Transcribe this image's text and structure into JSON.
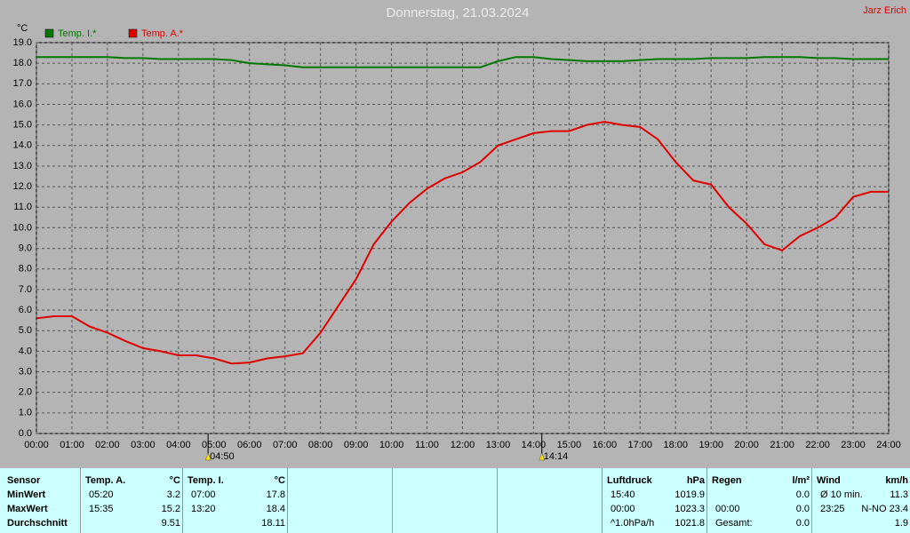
{
  "chart_data": {
    "type": "line",
    "title": "Donnerstag, 21.03.2024",
    "author": "Jarz Erich",
    "y_unit": "°C",
    "x": [
      0,
      0.5,
      1,
      1.5,
      2,
      2.5,
      3,
      3.5,
      4,
      4.5,
      5,
      5.5,
      6,
      6.5,
      7,
      7.5,
      8,
      8.5,
      9,
      9.5,
      10,
      10.5,
      11,
      11.5,
      12,
      12.5,
      13,
      13.5,
      14,
      14.5,
      15,
      15.5,
      16,
      16.5,
      17,
      17.5,
      18,
      18.5,
      19,
      19.5,
      20,
      20.5,
      21,
      21.5,
      22,
      22.5,
      23,
      23.5,
      24
    ],
    "series": [
      {
        "name": "Temp. I.*",
        "color": "#007800",
        "values": [
          18.3,
          18.3,
          18.3,
          18.3,
          18.3,
          18.25,
          18.25,
          18.2,
          18.2,
          18.2,
          18.2,
          18.15,
          18.0,
          17.95,
          17.9,
          17.8,
          17.8,
          17.8,
          17.8,
          17.8,
          17.8,
          17.8,
          17.8,
          17.8,
          17.8,
          17.8,
          18.1,
          18.3,
          18.3,
          18.2,
          18.15,
          18.1,
          18.1,
          18.1,
          18.15,
          18.2,
          18.2,
          18.2,
          18.25,
          18.25,
          18.25,
          18.3,
          18.3,
          18.3,
          18.25,
          18.25,
          18.2,
          18.2,
          18.2
        ]
      },
      {
        "name": "Temp. A.*",
        "color": "#e00000",
        "values": [
          5.6,
          5.7,
          5.7,
          5.2,
          4.9,
          4.5,
          4.15,
          4.0,
          3.8,
          3.8,
          3.65,
          3.4,
          3.45,
          3.65,
          3.75,
          3.9,
          4.9,
          6.2,
          7.5,
          9.2,
          10.3,
          11.2,
          11.9,
          12.4,
          12.7,
          13.2,
          14.0,
          14.3,
          14.6,
          14.7,
          14.7,
          15.0,
          15.15,
          15.0,
          14.9,
          14.3,
          13.2,
          12.3,
          12.1,
          11.0,
          10.2,
          9.2,
          8.9,
          9.6,
          10.0,
          10.5,
          11.5,
          11.75,
          11.75
        ]
      }
    ],
    "xlim": [
      0,
      24
    ],
    "ylim": [
      0,
      19
    ],
    "grid": true,
    "xticks": [
      {
        "value": 0,
        "label": "00:00"
      },
      {
        "value": 1,
        "label": "01:00"
      },
      {
        "value": 2,
        "label": "02:00"
      },
      {
        "value": 3,
        "label": "03:00"
      },
      {
        "value": 4,
        "label": "04:00"
      },
      {
        "value": 5,
        "label": "05:00"
      },
      {
        "value": 6,
        "label": "06:00"
      },
      {
        "value": 7,
        "label": "07:00"
      },
      {
        "value": 8,
        "label": "08:00"
      },
      {
        "value": 9,
        "label": "09:00"
      },
      {
        "value": 10,
        "label": "10:00"
      },
      {
        "value": 11,
        "label": "11:00"
      },
      {
        "value": 12,
        "label": "12:00"
      },
      {
        "value": 13,
        "label": "13:00"
      },
      {
        "value": 14,
        "label": "14:00"
      },
      {
        "value": 15,
        "label": "15:00"
      },
      {
        "value": 16,
        "label": "16:00"
      },
      {
        "value": 17,
        "label": "17:00"
      },
      {
        "value": 18,
        "label": "18:00"
      },
      {
        "value": 19,
        "label": "19:00"
      },
      {
        "value": 20,
        "label": "20:00"
      },
      {
        "value": 21,
        "label": "21:00"
      },
      {
        "value": 22,
        "label": "22:00"
      },
      {
        "value": 23,
        "label": "23:00"
      },
      {
        "value": 24,
        "label": "24:00"
      }
    ],
    "yticks": [
      {
        "value": 0,
        "label": "0.0"
      },
      {
        "value": 1,
        "label": "1.0"
      },
      {
        "value": 2,
        "label": "2.0"
      },
      {
        "value": 3,
        "label": "3.0"
      },
      {
        "value": 4,
        "label": "4.0"
      },
      {
        "value": 5,
        "label": "5.0"
      },
      {
        "value": 6,
        "label": "6.0"
      },
      {
        "value": 7,
        "label": "7.0"
      },
      {
        "value": 8,
        "label": "8.0"
      },
      {
        "value": 9,
        "label": "9.0"
      },
      {
        "value": 10,
        "label": "10.0"
      },
      {
        "value": 11,
        "label": "11.0"
      },
      {
        "value": 12,
        "label": "12.0"
      },
      {
        "value": 13,
        "label": "13.0"
      },
      {
        "value": 14,
        "label": "14.0"
      },
      {
        "value": 15,
        "label": "15.0"
      },
      {
        "value": 16,
        "label": "16.0"
      },
      {
        "value": 17,
        "label": "17.0"
      },
      {
        "value": 18,
        "label": "18.0"
      },
      {
        "value": 19,
        "label": "19.0"
      }
    ],
    "annotations": [
      {
        "x": 4.8333,
        "label": "04:50"
      },
      {
        "x": 14.2333,
        "label": "14:14"
      }
    ]
  },
  "table": {
    "row_labels_header": "Sensor",
    "row_labels": [
      "MinWert",
      "MaxWert",
      "Durchschnitt"
    ],
    "groups": [
      {
        "title": "Temp. A.",
        "unit": "°C",
        "cells": [
          [
            "05:20",
            "3.2"
          ],
          [
            "15:35",
            "15.2"
          ],
          [
            null,
            "9.51"
          ]
        ]
      },
      {
        "title": "Temp. I.",
        "unit": "°C",
        "cells": [
          [
            "07:00",
            "17.8"
          ],
          [
            "13:20",
            "18.4"
          ],
          [
            null,
            "18.11"
          ]
        ]
      },
      {
        "title": "Luftdruck",
        "unit": "hPa",
        "cells": [
          [
            "15:40",
            "1019.9"
          ],
          [
            "00:00",
            "1023.3"
          ],
          [
            "^1.0hPa/h",
            "1021.8"
          ]
        ]
      },
      {
        "title": "Regen",
        "unit": "l/m²",
        "cells": [
          [
            null,
            "0.0"
          ],
          [
            "00:00",
            "0.0"
          ],
          [
            "Gesamt:",
            "0.0"
          ]
        ]
      },
      {
        "title": "Wind",
        "unit": "km/h",
        "cells": [
          [
            "Ø 10 min.",
            "11.3"
          ],
          [
            "23:25",
            "N-NO 23.4"
          ],
          [
            null,
            "1.9"
          ]
        ]
      }
    ]
  }
}
